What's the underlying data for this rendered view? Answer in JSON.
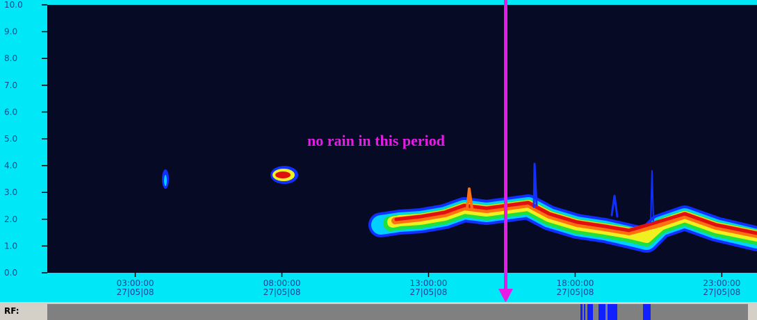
{
  "chart_data": {
    "type": "radar",
    "annotation": "no rain in this period",
    "rf_label": "RF:",
    "ylim": [
      0,
      10
    ],
    "yticks": [
      {
        "value": 0,
        "label": "0.0"
      },
      {
        "value": 1,
        "label": "1.0"
      },
      {
        "value": 2,
        "label": "2.0"
      },
      {
        "value": 3,
        "label": "3.0"
      },
      {
        "value": 4,
        "label": "4.0"
      },
      {
        "value": 5,
        "label": "5.0"
      },
      {
        "value": 6,
        "label": "6.0"
      },
      {
        "value": 7,
        "label": "7.0"
      },
      {
        "value": 8,
        "label": "8.0"
      },
      {
        "value": 9,
        "label": "9.0"
      },
      {
        "value": 10,
        "label": "10.0"
      }
    ],
    "xlim": [
      0,
      24.2
    ],
    "xticks": [
      {
        "value": 3,
        "label": "03:00:00"
      },
      {
        "value": 8,
        "label": "08:00:00"
      },
      {
        "value": 13,
        "label": "13:00:00"
      },
      {
        "value": 18,
        "label": "18:00:00"
      },
      {
        "value": 23,
        "label": "23:00:00"
      }
    ],
    "xtick_dates": [
      "27|05|08",
      "27|05|08",
      "27|05|08",
      "27|05|08",
      "27|05|08"
    ]
  }
}
